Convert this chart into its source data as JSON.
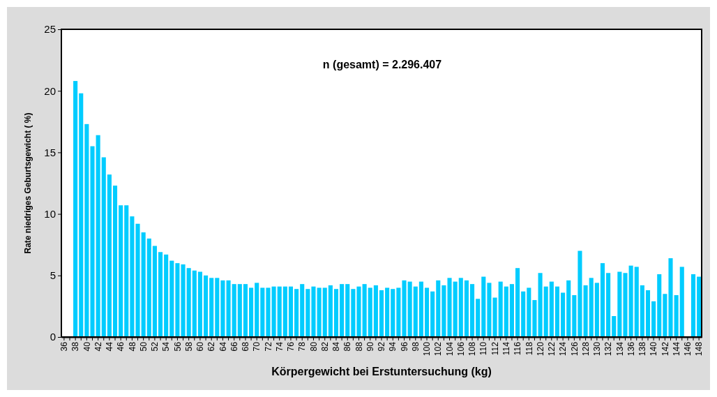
{
  "chart_data": {
    "type": "bar",
    "xlabel": "Körpergewicht  bei Erstuntersuchung (kg)",
    "ylabel": "Rate niedriges Geburtsgewicht ( %)",
    "annotations": [
      "n (gesamt) = 2.296.407"
    ],
    "categories": [
      "36",
      null,
      "38",
      null,
      "40",
      null,
      "42",
      null,
      "44",
      null,
      "46",
      null,
      "48",
      null,
      "50",
      null,
      "52",
      null,
      "54",
      null,
      "56",
      null,
      "58",
      null,
      "60",
      null,
      "62",
      null,
      "64",
      null,
      "66",
      null,
      "68",
      null,
      "70",
      null,
      "72",
      null,
      "74",
      null,
      "76",
      null,
      "78",
      null,
      "80",
      null,
      "82",
      null,
      "84",
      null,
      "86",
      null,
      "88",
      null,
      "90",
      null,
      "92",
      null,
      "94",
      null,
      "96",
      null,
      "98",
      null,
      "100",
      null,
      "102",
      null,
      "104",
      null,
      "106",
      null,
      "108",
      null,
      "110",
      null,
      "112",
      null,
      "114",
      null,
      "116",
      null,
      "118",
      null,
      "120",
      null,
      "122",
      null,
      "124",
      null,
      "126",
      null,
      "128",
      null,
      "130",
      null,
      "132",
      null,
      "134",
      null,
      "136",
      null,
      "138",
      null,
      "140",
      null,
      "142",
      null,
      "144",
      null,
      "146",
      null,
      "148"
    ],
    "values": [
      null,
      null,
      20.8,
      19.8,
      17.3,
      15.5,
      16.4,
      14.6,
      13.2,
      12.3,
      10.7,
      10.7,
      9.8,
      9.2,
      8.5,
      8.0,
      7.4,
      6.9,
      6.7,
      6.2,
      6.0,
      5.9,
      5.6,
      5.4,
      5.3,
      5.0,
      4.8,
      4.8,
      4.6,
      4.6,
      4.3,
      4.3,
      4.3,
      4.0,
      4.4,
      4.0,
      4.0,
      4.1,
      4.1,
      4.1,
      4.1,
      3.9,
      4.3,
      3.9,
      4.1,
      4.0,
      4.0,
      4.2,
      3.9,
      4.3,
      4.3,
      3.9,
      4.1,
      4.3,
      4.0,
      4.2,
      3.8,
      4.0,
      3.9,
      4.0,
      4.6,
      4.5,
      4.1,
      4.5,
      4.0,
      3.7,
      4.6,
      4.2,
      4.8,
      4.5,
      4.8,
      4.6,
      4.3,
      3.1,
      4.9,
      4.4,
      3.2,
      4.5,
      4.1,
      4.3,
      5.6,
      3.7,
      4.0,
      3.0,
      5.2,
      4.1,
      4.5,
      4.1,
      3.6,
      4.6,
      3.4,
      7.0,
      4.2,
      4.8,
      4.4,
      6.0,
      5.2,
      1.7,
      5.3,
      5.2,
      5.8,
      5.7,
      4.2,
      3.8,
      2.9,
      5.1,
      3.5,
      6.4,
      3.4,
      5.7,
      null,
      5.1,
      4.9
    ],
    "color": "#00ccff",
    "ylim": [
      0,
      25
    ],
    "yticks": [
      0,
      5,
      10,
      15,
      20,
      25
    ],
    "grid": false
  }
}
